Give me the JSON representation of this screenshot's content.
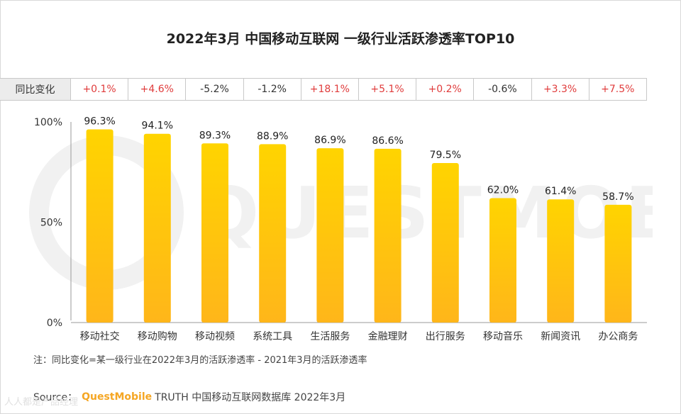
{
  "title": "2022年3月 中国移动互联网 一级行业活跃渗透率TOP10",
  "yoy": {
    "label": "同比变化",
    "values": [
      "+0.1%",
      "+4.6%",
      "-5.2%",
      "-1.2%",
      "+18.1%",
      "+5.1%",
      "+0.2%",
      "-0.6%",
      "+3.3%",
      "+7.5%"
    ]
  },
  "colors": {
    "positive": "#e03c3c",
    "negative": "#333333",
    "bar_top": "#ffd400",
    "bar_bottom": "#ffb61a"
  },
  "chart_data": {
    "type": "bar",
    "title": "2022年3月 中国移动互联网 一级行业活跃渗透率TOP10",
    "categories": [
      "移动社交",
      "移动购物",
      "移动视频",
      "系统工具",
      "生活服务",
      "金融理财",
      "出行服务",
      "移动音乐",
      "新闻资讯",
      "办公商务"
    ],
    "values": [
      96.3,
      94.1,
      89.3,
      88.9,
      86.9,
      86.6,
      79.5,
      62.0,
      61.4,
      58.7
    ],
    "data_labels": [
      "96.3%",
      "94.1%",
      "89.3%",
      "88.9%",
      "86.9%",
      "86.6%",
      "79.5%",
      "62.0%",
      "61.4%",
      "58.7%"
    ],
    "yticks": [
      "0%",
      "50%",
      "100%"
    ],
    "ylim": [
      0,
      100
    ],
    "xlabel": "",
    "ylabel": ""
  },
  "watermark": "QUESTMOBILE",
  "note": "注：同比变化=某一级行业在2022年3月的活跃渗透率 - 2021年3月的活跃渗透率",
  "source": {
    "prefix": "Source：",
    "brand": "QuestMobile",
    "suffix": "TRUTH 中国移动互联网数据库 2022年3月"
  },
  "corner_mark": "人人都是产品经理"
}
